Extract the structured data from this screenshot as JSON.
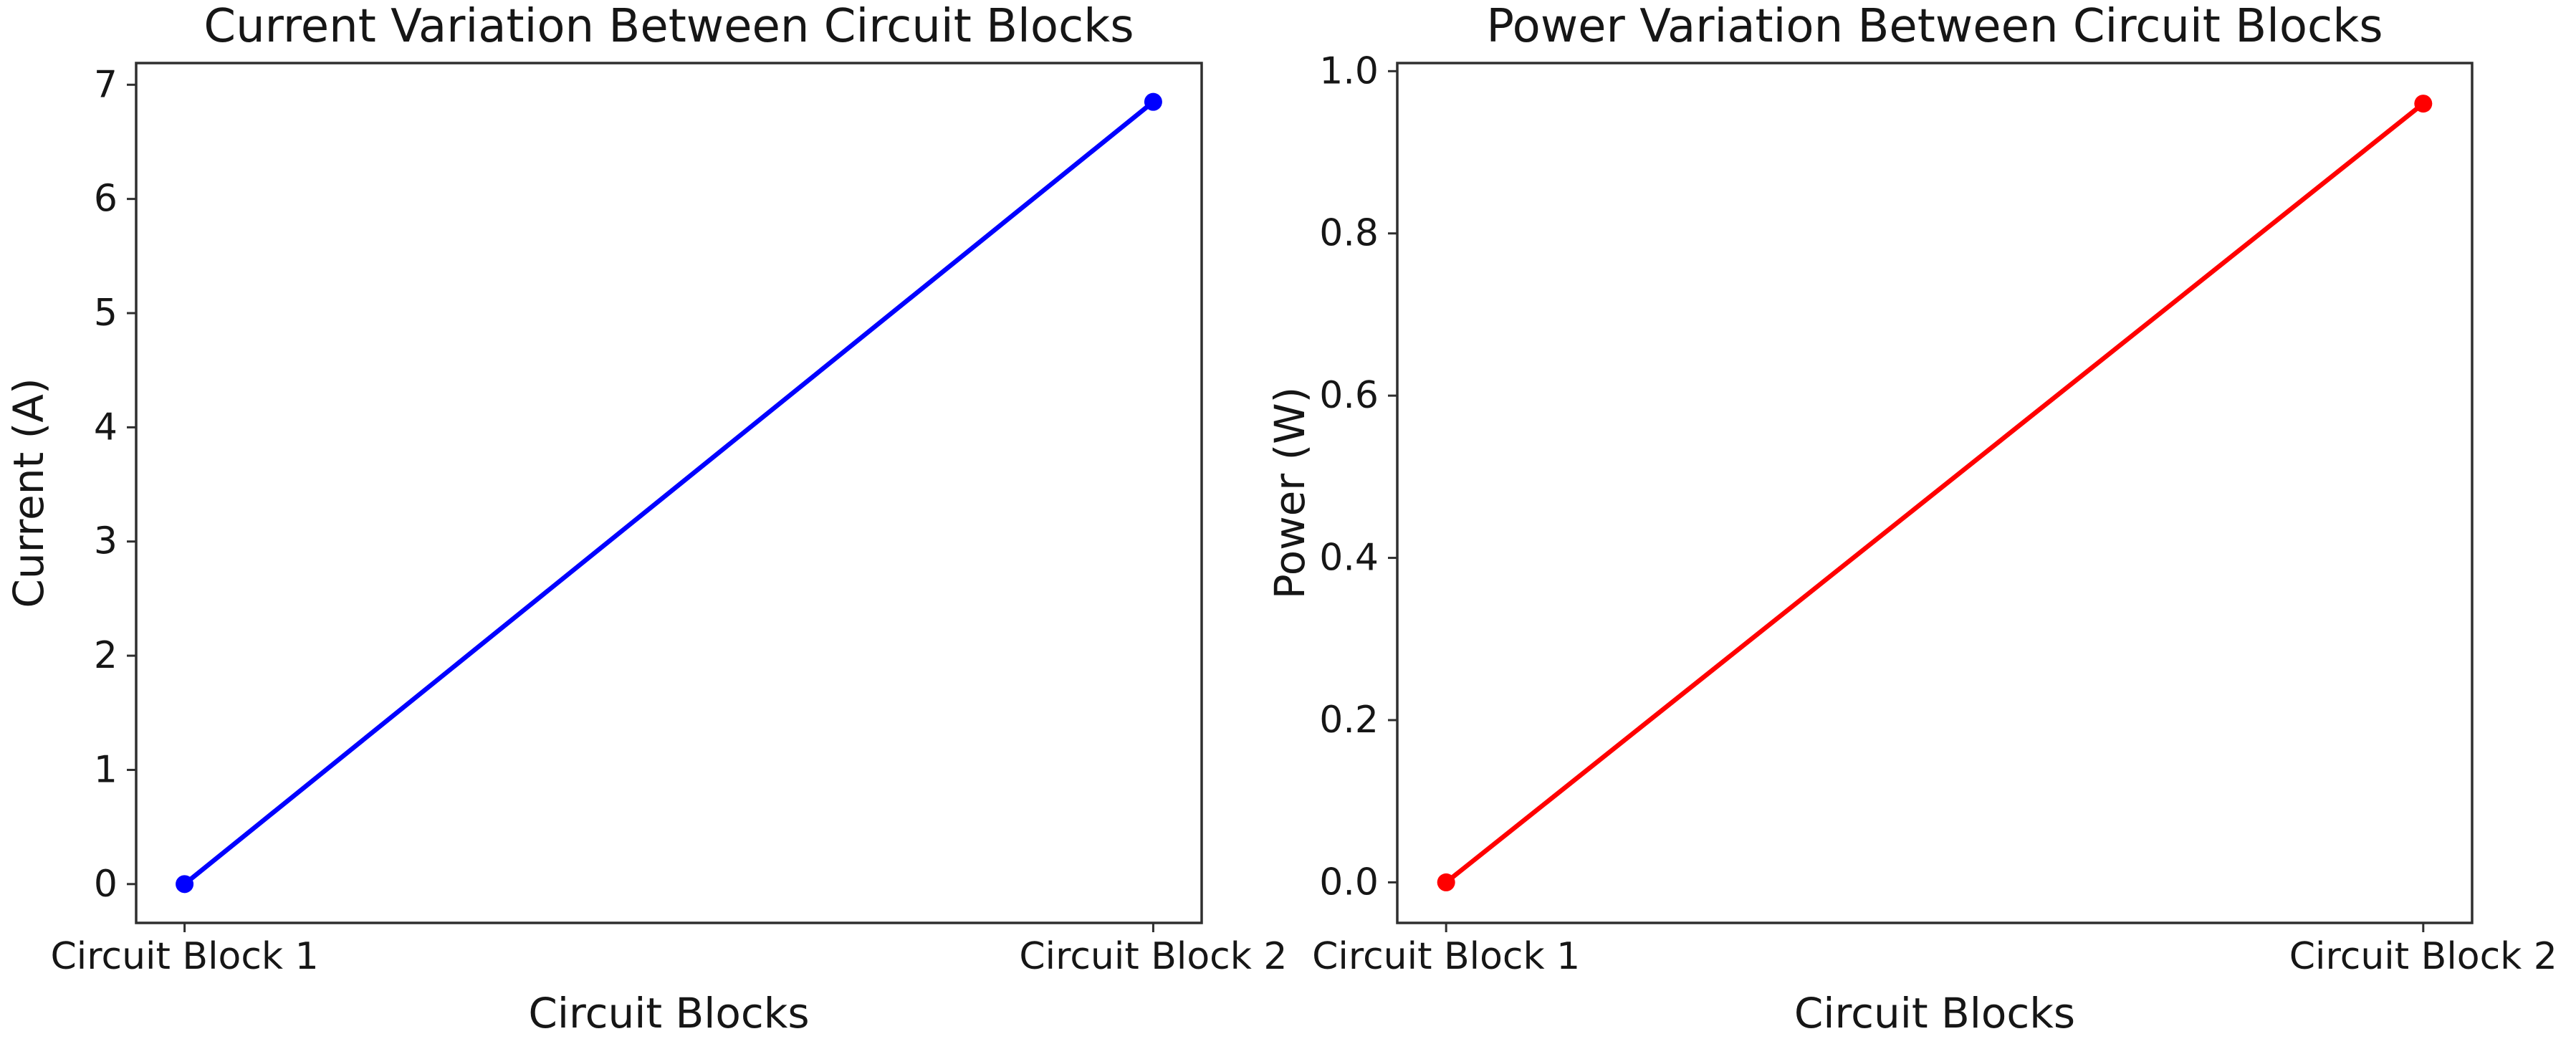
{
  "figure": {
    "background": "#ffffff",
    "text_color": "#161616",
    "spine_color": "#2f2f2f"
  },
  "chart_data": [
    {
      "type": "line",
      "title": "Current Variation Between Circuit Blocks",
      "xlabel": "Circuit Blocks",
      "ylabel": "Current (A)",
      "categories": [
        "Circuit Block 1",
        "Circuit Block 2"
      ],
      "values": [
        0.0,
        6.85
      ],
      "yticks": [
        0,
        1,
        2,
        3,
        4,
        5,
        6,
        7
      ],
      "ytick_labels": [
        "0",
        "1",
        "2",
        "3",
        "4",
        "5",
        "6",
        "7"
      ],
      "ylim": [
        -0.34,
        7.19
      ],
      "xlim": [
        -0.05,
        1.05
      ],
      "grid": false,
      "legend": false,
      "line_color": "#0000ff",
      "marker": "circle"
    },
    {
      "type": "line",
      "title": "Power Variation Between Circuit Blocks",
      "xlabel": "Circuit Blocks",
      "ylabel": "Power (W)",
      "categories": [
        "Circuit Block 1",
        "Circuit Block 2"
      ],
      "values": [
        0.0,
        0.96
      ],
      "yticks": [
        0.0,
        0.2,
        0.4,
        0.6,
        0.8,
        1.0
      ],
      "ytick_labels": [
        "0.0",
        "0.2",
        "0.4",
        "0.6",
        "0.8",
        "1.0"
      ],
      "ylim": [
        -0.05,
        1.01
      ],
      "xlim": [
        -0.05,
        1.05
      ],
      "grid": false,
      "legend": false,
      "line_color": "#ff0000",
      "marker": "circle"
    }
  ]
}
